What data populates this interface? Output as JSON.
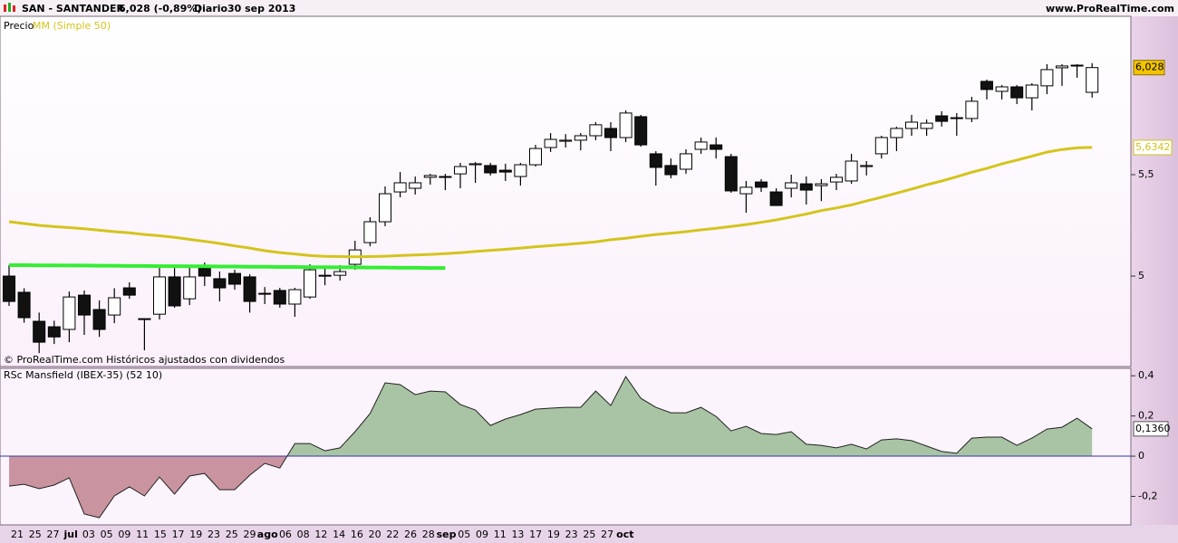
{
  "header": {
    "symbol": "SAN - SANTANDER",
    "quote": "6,028 (-0,89%)",
    "period": "Diario",
    "date": "30 sep 2013",
    "brand": "www.ProRealTime.com"
  },
  "chart_data": [
    {
      "type": "candlestick",
      "footnote": "© ProRealTime.com  Históricos ajustados con dividendos",
      "ylim": [
        4.554,
        6.281
      ],
      "yticks": [
        5,
        {
          "value": 5.5,
          "label": "5,5"
        }
      ],
      "series": [
        {
          "name": "Precio",
          "color": "#000000",
          "up_color": "#ffffff",
          "down_color": "#111111",
          "value_label": "6,028",
          "open": [
            5.0,
            4.92,
            4.777,
            4.75,
            4.737,
            4.906,
            4.835,
            4.808,
            4.942,
            4.79,
            4.812,
            4.996,
            4.888,
            5.04,
            4.987,
            5.013,
            4.996,
            4.915,
            4.929,
            4.862,
            4.897,
            5.0,
            5.004,
            5.058,
            5.165,
            5.268,
            5.415,
            5.433,
            5.487,
            5.487,
            5.504,
            5.549,
            5.545,
            5.522,
            5.491,
            5.549,
            5.634,
            5.665,
            5.67,
            5.692,
            5.728,
            5.683,
            5.786,
            5.603,
            5.545,
            5.527,
            5.625,
            5.647,
            5.589,
            5.406,
            5.464,
            5.415,
            5.433,
            5.455,
            5.446,
            5.464,
            5.469,
            5.54,
            5.603,
            5.683,
            5.728,
            5.728,
            5.79,
            5.777,
            5.777,
            5.96,
            5.911,
            5.933,
            5.879,
            5.938,
            6.027,
            6.036,
            5.906
          ],
          "high": [
            5.054,
            4.94,
            4.82,
            4.78,
            4.924,
            4.929,
            4.88,
            4.94,
            4.969,
            4.79,
            5.04,
            5.04,
            5.054,
            5.067,
            5.022,
            5.031,
            5.009,
            4.946,
            4.942,
            4.942,
            5.058,
            5.049,
            5.054,
            5.174,
            5.29,
            5.442,
            5.513,
            5.491,
            5.504,
            5.504,
            5.558,
            5.562,
            5.558,
            5.554,
            5.558,
            5.647,
            5.705,
            5.7,
            5.705,
            5.759,
            5.759,
            5.817,
            5.795,
            5.616,
            5.58,
            5.625,
            5.683,
            5.683,
            5.603,
            5.469,
            5.478,
            5.433,
            5.5,
            5.491,
            5.478,
            5.504,
            5.603,
            5.567,
            5.692,
            5.737,
            5.795,
            5.772,
            5.813,
            5.804,
            5.884,
            5.969,
            5.942,
            5.942,
            5.951,
            6.045,
            6.045,
            6.045,
            6.05
          ],
          "low": [
            4.853,
            4.77,
            4.62,
            4.665,
            4.674,
            4.71,
            4.7,
            4.768,
            4.888,
            4.634,
            4.786,
            4.844,
            4.857,
            4.951,
            4.875,
            4.933,
            4.82,
            4.862,
            4.844,
            4.799,
            4.888,
            4.955,
            4.978,
            5.031,
            5.147,
            5.246,
            5.388,
            5.402,
            5.451,
            5.424,
            5.433,
            5.46,
            5.496,
            5.469,
            5.446,
            5.54,
            5.612,
            5.634,
            5.62,
            5.67,
            5.616,
            5.661,
            5.638,
            5.446,
            5.482,
            5.504,
            5.603,
            5.58,
            5.411,
            5.312,
            5.415,
            5.348,
            5.388,
            5.353,
            5.37,
            5.424,
            5.455,
            5.496,
            5.58,
            5.616,
            5.692,
            5.692,
            5.737,
            5.692,
            5.759,
            5.871,
            5.871,
            5.848,
            5.817,
            5.897,
            5.938,
            5.978,
            5.88
          ],
          "close": [
            4.875,
            4.795,
            4.674,
            4.7,
            4.897,
            4.808,
            4.737,
            4.893,
            4.906,
            4.786,
            4.996,
            4.853,
            4.996,
            5.0,
            4.942,
            4.96,
            4.875,
            4.911,
            4.862,
            4.933,
            5.031,
            5.004,
            5.022,
            5.129,
            5.268,
            5.406,
            5.46,
            5.46,
            5.496,
            5.491,
            5.54,
            5.554,
            5.509,
            5.513,
            5.549,
            5.629,
            5.674,
            5.67,
            5.692,
            5.746,
            5.683,
            5.804,
            5.647,
            5.536,
            5.5,
            5.603,
            5.661,
            5.625,
            5.42,
            5.438,
            5.438,
            5.348,
            5.46,
            5.424,
            5.455,
            5.487,
            5.567,
            5.545,
            5.683,
            5.728,
            5.759,
            5.754,
            5.763,
            5.781,
            5.862,
            5.92,
            5.933,
            5.879,
            5.942,
            6.018,
            6.036,
            6.04,
            6.028
          ]
        },
        {
          "name": "MM (Simple 50)",
          "color": "#d4c41c",
          "value_label": "5,6342",
          "values": [
            5.268,
            5.259,
            5.25,
            5.244,
            5.239,
            5.233,
            5.226,
            5.219,
            5.213,
            5.205,
            5.199,
            5.191,
            5.181,
            5.171,
            5.161,
            5.149,
            5.138,
            5.125,
            5.116,
            5.109,
            5.101,
            5.097,
            5.096,
            5.095,
            5.096,
            5.098,
            5.101,
            5.104,
            5.107,
            5.111,
            5.115,
            5.121,
            5.127,
            5.132,
            5.138,
            5.145,
            5.15,
            5.156,
            5.162,
            5.169,
            5.179,
            5.187,
            5.196,
            5.205,
            5.212,
            5.219,
            5.228,
            5.236,
            5.245,
            5.254,
            5.265,
            5.277,
            5.291,
            5.306,
            5.323,
            5.336,
            5.351,
            5.37,
            5.389,
            5.409,
            5.429,
            5.45,
            5.469,
            5.49,
            5.512,
            5.531,
            5.553,
            5.572,
            5.591,
            5.611,
            5.624,
            5.632,
            5.6342
          ]
        },
        {
          "color": "#33ee33",
          "values": [
            5.054,
            5.054,
            5.053,
            5.053,
            5.052,
            5.052,
            5.051,
            5.051,
            5.05,
            5.05,
            5.049,
            5.049,
            5.048,
            5.048,
            5.047,
            5.047,
            5.046,
            5.046,
            5.045,
            5.045,
            5.044,
            5.044,
            5.043,
            5.043,
            5.042,
            5.042,
            5.041,
            5.041,
            5.04,
            5.04,
            null,
            null,
            null,
            null,
            null,
            null,
            null,
            null,
            null,
            null,
            null,
            null,
            null,
            null,
            null,
            null,
            null,
            null,
            null,
            null,
            null,
            null,
            null,
            null,
            null,
            null,
            null,
            null,
            null,
            null,
            null,
            null,
            null,
            null,
            null,
            null,
            null,
            null,
            null,
            null,
            null,
            null,
            null
          ]
        }
      ]
    },
    {
      "type": "area",
      "title": "RSc Mansfield (IBEX-35) (52 10)",
      "positive_color": "#a9c4a4",
      "negative_color": "#c9949f",
      "line_color": "#222222",
      "zero_color": "#3333aa",
      "value_label": "0,1360",
      "ylim": [
        -0.342,
        0.437
      ],
      "yticks": [
        {
          "value": 0.4,
          "label": "0,4"
        },
        {
          "value": 0.2,
          "label": "0,2"
        },
        0,
        {
          "value": -0.2,
          "label": "-0,2"
        }
      ],
      "values": [
        -0.149,
        -0.14,
        -0.162,
        -0.144,
        -0.108,
        -0.288,
        -0.306,
        -0.198,
        -0.153,
        -0.198,
        -0.104,
        -0.189,
        -0.099,
        -0.086,
        -0.167,
        -0.167,
        -0.095,
        -0.036,
        -0.059,
        0.063,
        0.063,
        0.027,
        0.041,
        0.122,
        0.212,
        0.365,
        0.356,
        0.306,
        0.324,
        0.32,
        0.257,
        0.23,
        0.153,
        0.185,
        0.207,
        0.234,
        0.239,
        0.243,
        0.243,
        0.324,
        0.252,
        0.396,
        0.288,
        0.243,
        0.216,
        0.216,
        0.243,
        0.198,
        0.126,
        0.149,
        0.113,
        0.108,
        0.122,
        0.059,
        0.054,
        0.041,
        0.059,
        0.036,
        0.081,
        0.086,
        0.077,
        0.05,
        0.023,
        0.014,
        0.09,
        0.095,
        0.095,
        0.054,
        0.09,
        0.135,
        0.144,
        0.189,
        0.136
      ],
      "x_axis_labels": [
        "21",
        "25",
        "27",
        "jul",
        "03",
        "05",
        "09",
        "11",
        "15",
        "17",
        "19",
        "23",
        "25",
        "29",
        "ago",
        "06",
        "08",
        "12",
        "14",
        "16",
        "20",
        "22",
        "26",
        "28",
        "sep",
        "05",
        "09",
        "11",
        "13",
        "17",
        "19",
        "23",
        "25",
        "27",
        "oct"
      ]
    }
  ]
}
